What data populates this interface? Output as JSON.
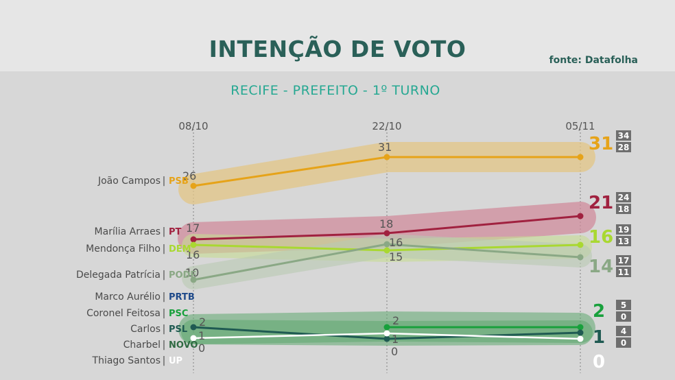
{
  "header": {
    "title": "INTENÇÃO DE VOTO",
    "source": "fonte: Datafolha",
    "subtitle": "RECIFE - PREFEITO - 1º TURNO"
  },
  "chart_data": {
    "type": "line",
    "x": [
      "08/10",
      "22/10",
      "05/11"
    ],
    "ylim": [
      0,
      31
    ],
    "series": [
      {
        "name": "João Campos",
        "party": "PSB",
        "values": [
          26,
          31,
          31
        ],
        "range": [
          "34",
          "28"
        ],
        "color": "#e6a319",
        "band": "#e3c585"
      },
      {
        "name": "Marília Arraes",
        "party": "PT",
        "values": [
          17,
          18,
          21
        ],
        "range": [
          "24",
          "18"
        ],
        "color": "#a0213f",
        "band": "#d08898"
      },
      {
        "name": "Mendonça Filho",
        "party": "DEM",
        "values": [
          16,
          15,
          16
        ],
        "range": [
          "19",
          "13"
        ],
        "color": "#a9d831",
        "band": "#c6dc92"
      },
      {
        "name": "Delegada Patrícia",
        "party": "PODE",
        "values": [
          10,
          16,
          14
        ],
        "range": [
          "17",
          "11"
        ],
        "color": "#8aa885",
        "band": "#b9c9b3"
      },
      {
        "name": "Marco Aurélio",
        "party": "PRTB",
        "values": [
          null,
          null,
          null
        ],
        "range": null,
        "color": "#1f4a8a",
        "band": null
      },
      {
        "name": "Coronel Feitosa",
        "party": "PSC",
        "values": [
          null,
          2,
          2
        ],
        "range": [
          "5",
          "0"
        ],
        "color": "#18a03c",
        "band": "#5ea870"
      },
      {
        "name": "Carlos",
        "party": "PSL",
        "values": [
          2,
          1,
          1
        ],
        "range": [
          "4",
          "0"
        ],
        "color": "#1f5a52",
        "band": "#5ea870"
      },
      {
        "name": "Charbel",
        "party": "NOVO",
        "values": [
          0,
          null,
          null
        ],
        "range": null,
        "color": "#2f6a42",
        "band": null
      },
      {
        "name": "Thiago Santos",
        "party": "UP",
        "values": [
          1,
          1,
          0
        ],
        "range": null,
        "color": "#ffffff",
        "band": null
      }
    ],
    "point_labels": [
      {
        "value": "26",
        "color": "#555555"
      },
      {
        "value": "31",
        "color": "#555555"
      },
      {
        "value": "17",
        "color": "#555555"
      },
      {
        "value": "18",
        "color": "#555555"
      },
      {
        "value": "16",
        "color": "#555555"
      },
      {
        "value": "15",
        "color": "#555555"
      },
      {
        "value": "16",
        "color": "#555555"
      },
      {
        "value": "10",
        "color": "#555555"
      },
      {
        "value": "2",
        "color": "#555555"
      },
      {
        "value": "1",
        "color": "#555555"
      },
      {
        "value": "0",
        "color": "#555555"
      },
      {
        "value": "2",
        "color": "#555555"
      },
      {
        "value": "1",
        "color": "#555555"
      },
      {
        "value": "0",
        "color": "#555555"
      }
    ],
    "end_labels": [
      {
        "value": "31",
        "color": "#e6a319"
      },
      {
        "value": "21",
        "color": "#a0213f"
      },
      {
        "value": "16",
        "color": "#a9d831"
      },
      {
        "value": "14",
        "color": "#8aa885"
      },
      {
        "value": "2",
        "color": "#18a03c"
      },
      {
        "value": "1",
        "color": "#1f5a52"
      },
      {
        "value": "0",
        "color": "#ffffff"
      }
    ]
  }
}
